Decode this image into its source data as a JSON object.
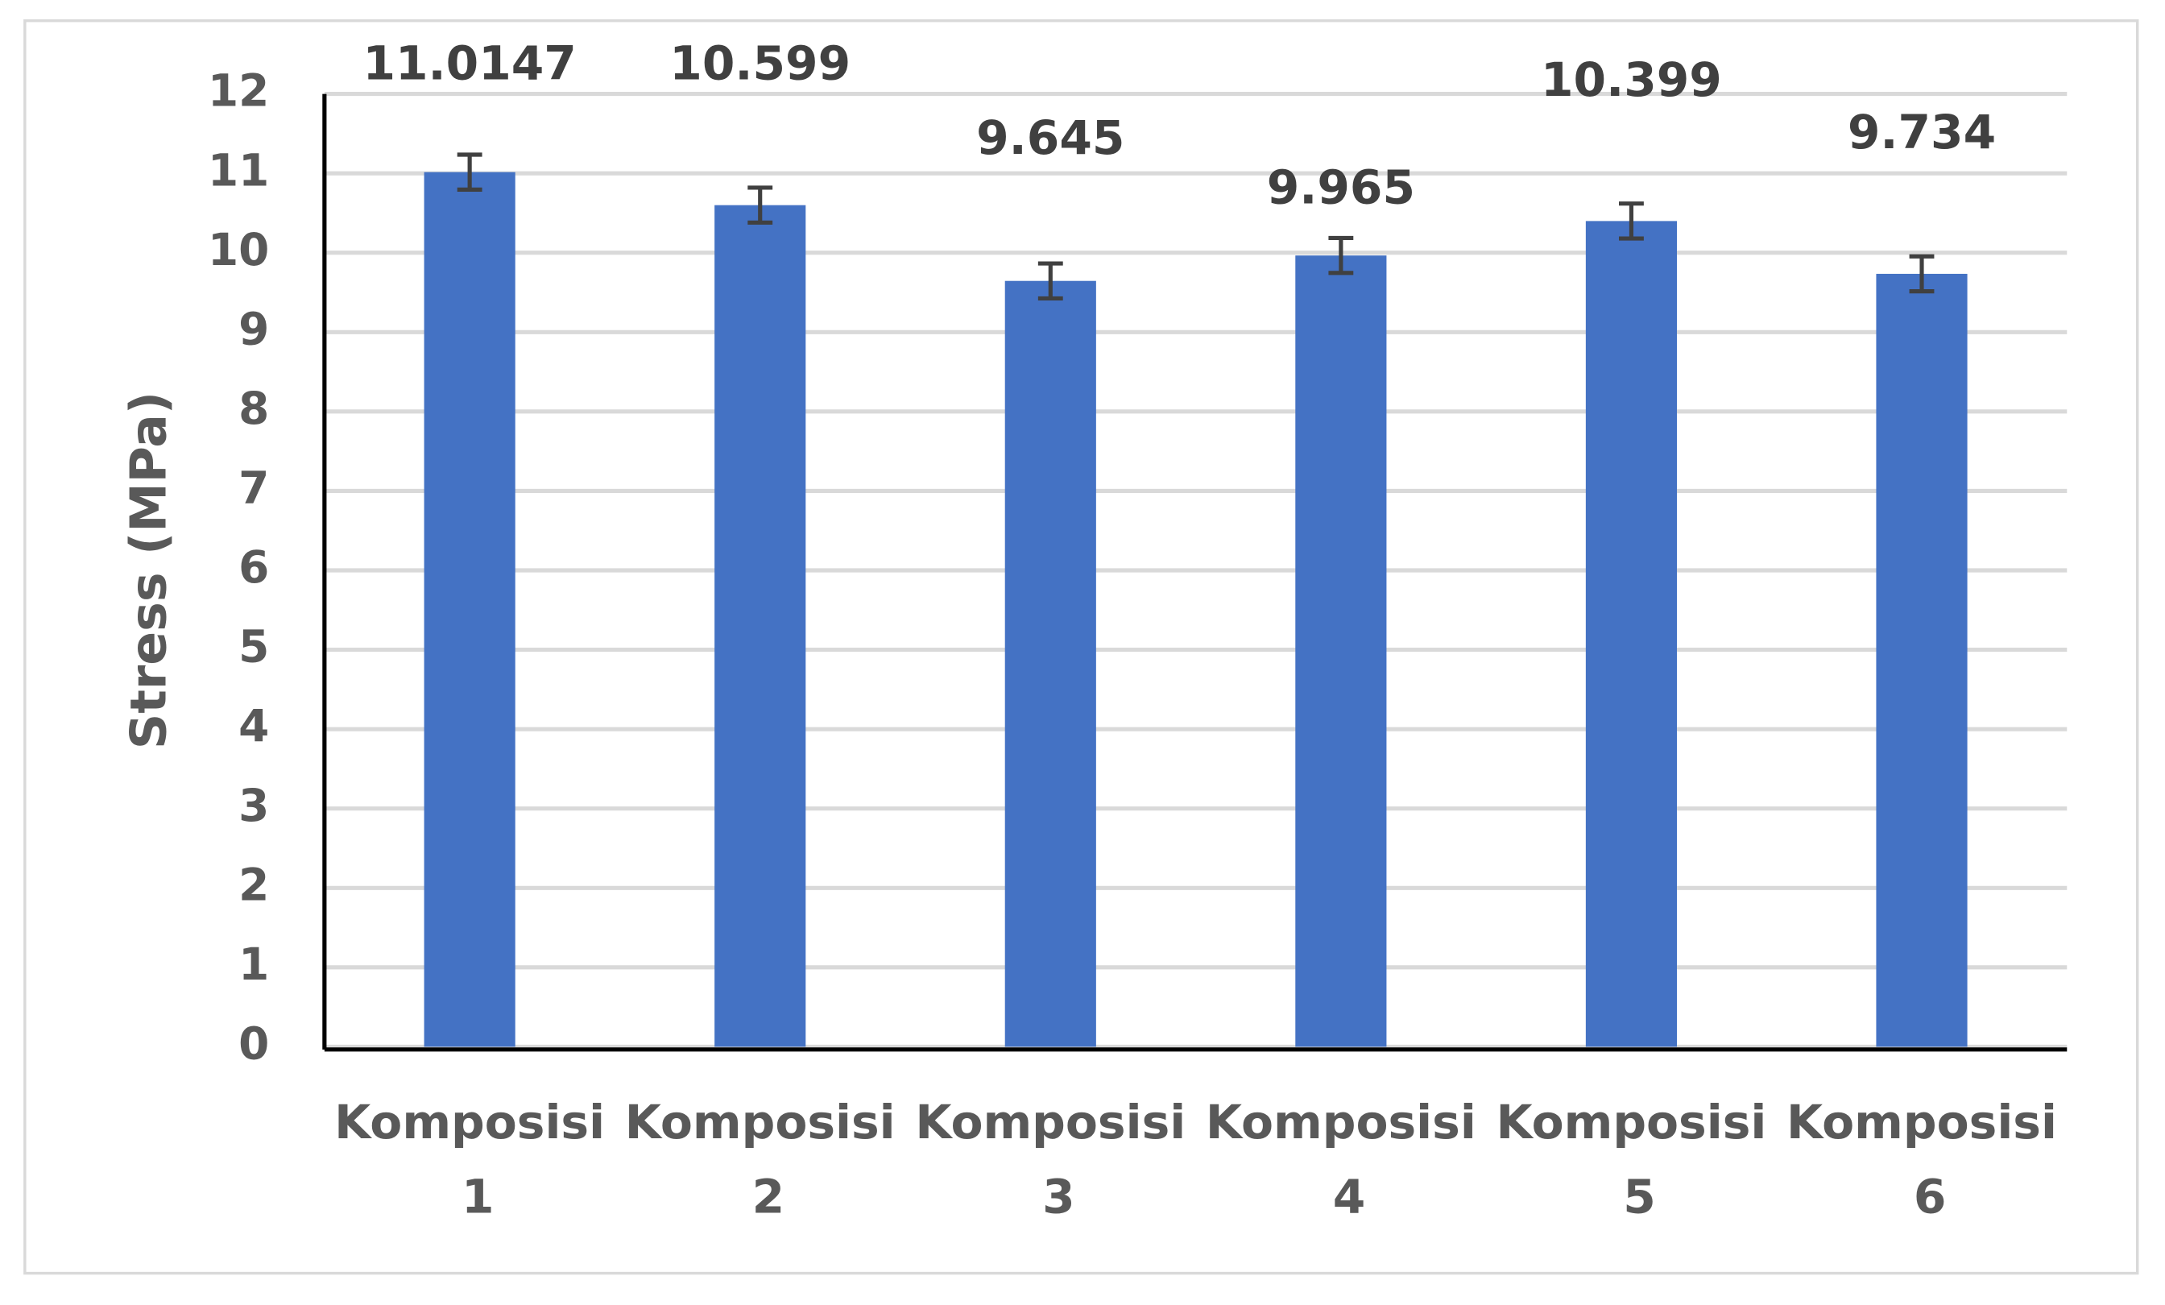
{
  "chart_data": {
    "type": "bar",
    "y_label": "Stress (MPa)",
    "categories": [
      "Komposisi 1",
      "Komposisi 2",
      "Komposisi 3",
      "Komposisi 4",
      "Komposisi 5",
      "Komposisi 6"
    ],
    "values": [
      11.0147,
      10.599,
      9.645,
      9.965,
      10.399,
      9.734
    ],
    "errors": [
      0.22,
      0.22,
      0.22,
      0.22,
      0.22,
      0.22
    ],
    "color": "#4472c4",
    "ylim": [
      0,
      12
    ],
    "yticks": [
      0,
      1,
      2,
      3,
      4,
      5,
      6,
      7,
      8,
      9,
      10,
      11,
      12
    ],
    "grid": true
  }
}
